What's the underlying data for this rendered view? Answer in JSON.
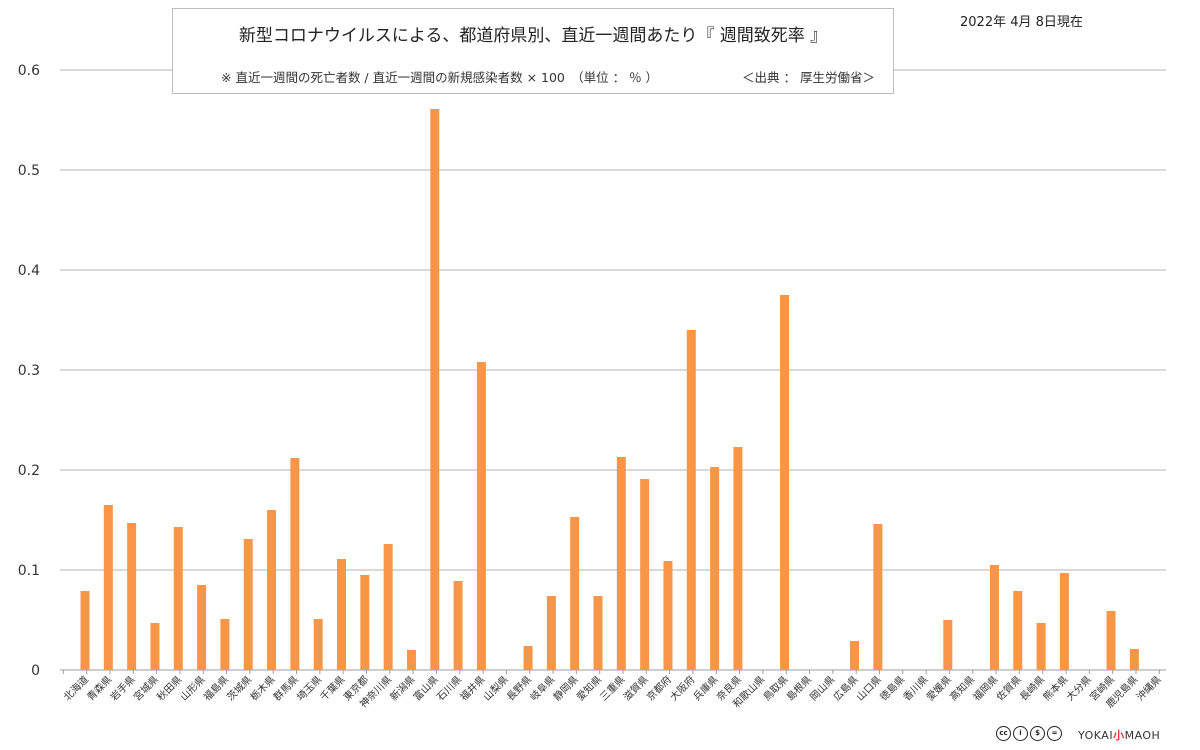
{
  "chart_data": {
    "type": "bar",
    "title": "新型コロナウイルスによる、都道府県別、直近一週間あたり『 週間致死率 』",
    "subtitle": "※ 直近一週間の死亡者数 / 直近一週間の新規感染者数 × 100　（単位 ： ％ ）",
    "source": "＜出典 ： 厚生労働省＞",
    "date_label": "2022年 4月 8日現在",
    "xlabel": "",
    "ylabel": "",
    "ylim": [
      0,
      0.6
    ],
    "yticks": [
      "0",
      "0.1",
      "0.2",
      "0.3",
      "0.4",
      "0.5",
      "0.6"
    ],
    "grid": true,
    "color": "#F79646",
    "categories": [
      "北海道",
      "青森県",
      "岩手県",
      "宮城県",
      "秋田県",
      "山形県",
      "福島県",
      "茨城県",
      "栃木県",
      "群馬県",
      "埼玉県",
      "千葉県",
      "東京都",
      "神奈川県",
      "新潟県",
      "富山県",
      "石川県",
      "福井県",
      "山梨県",
      "長野県",
      "岐阜県",
      "静岡県",
      "愛知県",
      "三重県",
      "滋賀県",
      "京都府",
      "大阪府",
      "兵庫県",
      "奈良県",
      "和歌山県",
      "鳥取県",
      "島根県",
      "岡山県",
      "広島県",
      "山口県",
      "徳島県",
      "香川県",
      "愛媛県",
      "高知県",
      "福岡県",
      "佐賀県",
      "長崎県",
      "熊本県",
      "大分県",
      "宮崎県",
      "鹿児島県",
      "沖縄県"
    ],
    "values": [
      0.079,
      0.165,
      0.147,
      0.047,
      0.143,
      0.085,
      0.051,
      0.131,
      0.16,
      0.212,
      0.051,
      0.111,
      0.095,
      0.126,
      0.02,
      0.561,
      0.089,
      0.308,
      0,
      0.024,
      0.074,
      0.153,
      0.074,
      0.213,
      0.191,
      0.109,
      0.34,
      0.203,
      0.223,
      0,
      0.375,
      0,
      0,
      0.029,
      0.146,
      0,
      0,
      0.05,
      0,
      0.105,
      0.079,
      0.047,
      0.097,
      0,
      0.059,
      0.021,
      0
    ]
  },
  "footer": {
    "cc_icons": [
      "cc-icon",
      "by-icon",
      "nc-icon",
      "nd-icon"
    ],
    "cc_glyphs": [
      "cc",
      "i",
      "$",
      "="
    ],
    "brand_left": "YOKAI",
    "brand_mark": "小",
    "brand_right": "MAOH"
  }
}
